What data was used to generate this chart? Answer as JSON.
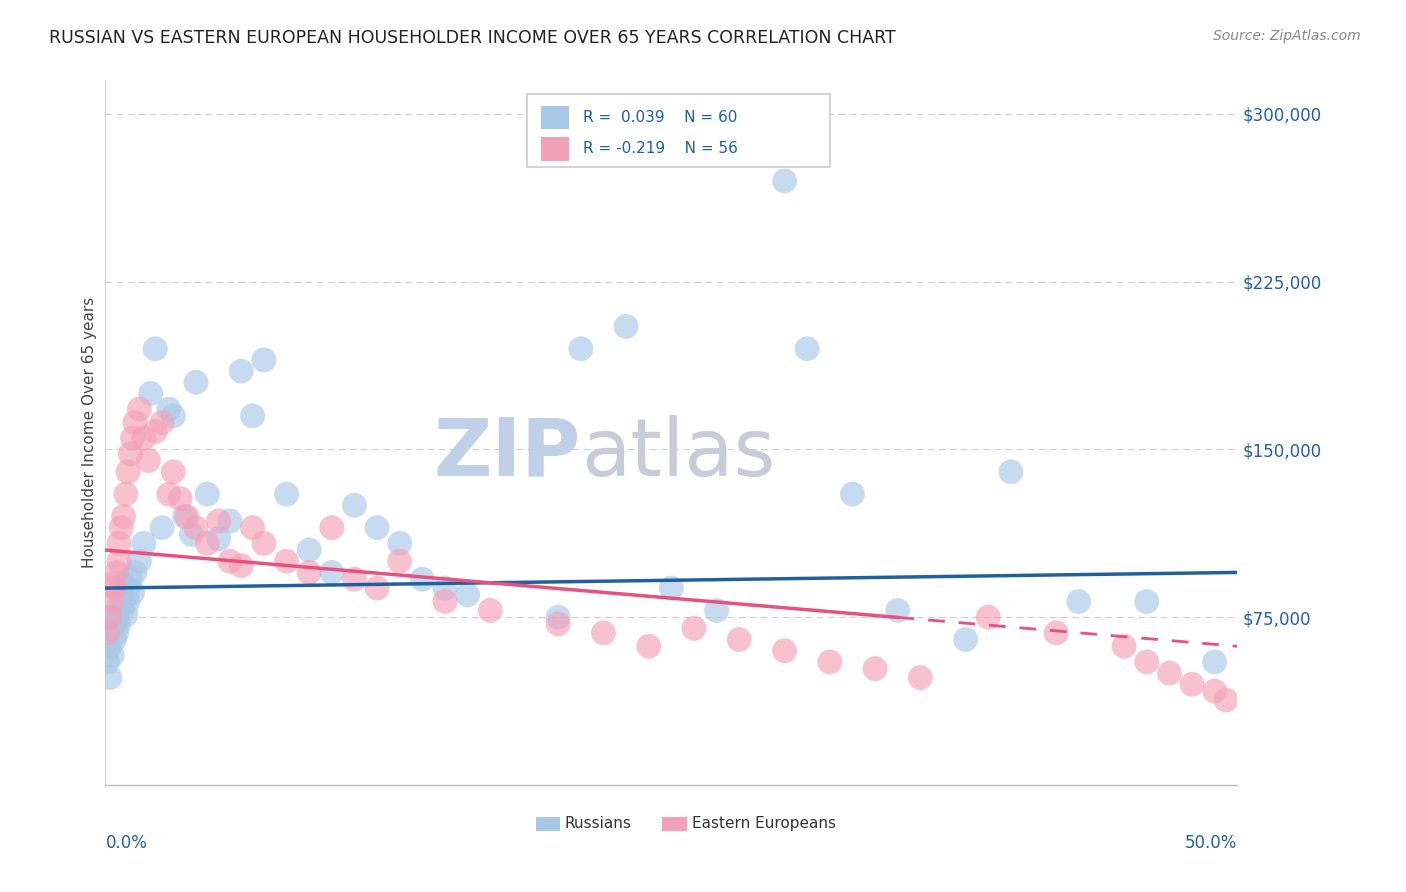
{
  "title": "RUSSIAN VS EASTERN EUROPEAN HOUSEHOLDER INCOME OVER 65 YEARS CORRELATION CHART",
  "source": "Source: ZipAtlas.com",
  "ylabel": "Householder Income Over 65 years",
  "xlim": [
    0.0,
    0.5
  ],
  "ylim": [
    0,
    315000
  ],
  "russian_color": "#a8c8e8",
  "eastern_color": "#f4a0b8",
  "russian_line_color": "#2060a0",
  "eastern_line_color": "#e85080",
  "background_color": "#ffffff",
  "grid_color": "#cccccc",
  "ytick_vals": [
    75000,
    150000,
    225000,
    300000
  ],
  "ytick_labels": [
    "$75,000",
    "$150,000",
    "$225,000",
    "$300,000"
  ],
  "russians_x": [
    0.001,
    0.002,
    0.002,
    0.003,
    0.003,
    0.004,
    0.004,
    0.005,
    0.005,
    0.006,
    0.006,
    0.007,
    0.007,
    0.008,
    0.008,
    0.009,
    0.01,
    0.01,
    0.011,
    0.012,
    0.013,
    0.015,
    0.017,
    0.02,
    0.022,
    0.025,
    0.028,
    0.03,
    0.035,
    0.038,
    0.04,
    0.045,
    0.05,
    0.055,
    0.06,
    0.065,
    0.07,
    0.08,
    0.09,
    0.1,
    0.11,
    0.12,
    0.13,
    0.14,
    0.15,
    0.16,
    0.2,
    0.21,
    0.23,
    0.25,
    0.27,
    0.3,
    0.31,
    0.33,
    0.35,
    0.38,
    0.4,
    0.43,
    0.46,
    0.49
  ],
  "russians_y": [
    55000,
    62000,
    48000,
    70000,
    58000,
    65000,
    72000,
    68000,
    75000,
    80000,
    72000,
    85000,
    78000,
    82000,
    90000,
    76000,
    88000,
    82000,
    92000,
    86000,
    95000,
    100000,
    108000,
    175000,
    195000,
    115000,
    168000,
    165000,
    120000,
    112000,
    180000,
    130000,
    110000,
    118000,
    185000,
    165000,
    190000,
    130000,
    105000,
    95000,
    125000,
    115000,
    108000,
    92000,
    88000,
    85000,
    75000,
    195000,
    205000,
    88000,
    78000,
    270000,
    195000,
    130000,
    78000,
    65000,
    140000,
    82000,
    82000,
    55000
  ],
  "easterns_x": [
    0.001,
    0.002,
    0.003,
    0.003,
    0.004,
    0.005,
    0.006,
    0.006,
    0.007,
    0.008,
    0.009,
    0.01,
    0.011,
    0.012,
    0.013,
    0.015,
    0.017,
    0.019,
    0.022,
    0.025,
    0.028,
    0.03,
    0.033,
    0.036,
    0.04,
    0.045,
    0.05,
    0.055,
    0.06,
    0.065,
    0.07,
    0.08,
    0.09,
    0.1,
    0.11,
    0.12,
    0.13,
    0.15,
    0.17,
    0.2,
    0.22,
    0.24,
    0.26,
    0.28,
    0.3,
    0.32,
    0.34,
    0.36,
    0.39,
    0.42,
    0.45,
    0.46,
    0.47,
    0.48,
    0.49,
    0.495
  ],
  "easterns_y": [
    68000,
    75000,
    82000,
    90000,
    88000,
    95000,
    100000,
    108000,
    115000,
    120000,
    130000,
    140000,
    148000,
    155000,
    162000,
    168000,
    155000,
    145000,
    158000,
    162000,
    130000,
    140000,
    128000,
    120000,
    115000,
    108000,
    118000,
    100000,
    98000,
    115000,
    108000,
    100000,
    95000,
    115000,
    92000,
    88000,
    100000,
    82000,
    78000,
    72000,
    68000,
    62000,
    70000,
    65000,
    60000,
    55000,
    52000,
    48000,
    75000,
    68000,
    62000,
    55000,
    50000,
    45000,
    42000,
    38000
  ]
}
